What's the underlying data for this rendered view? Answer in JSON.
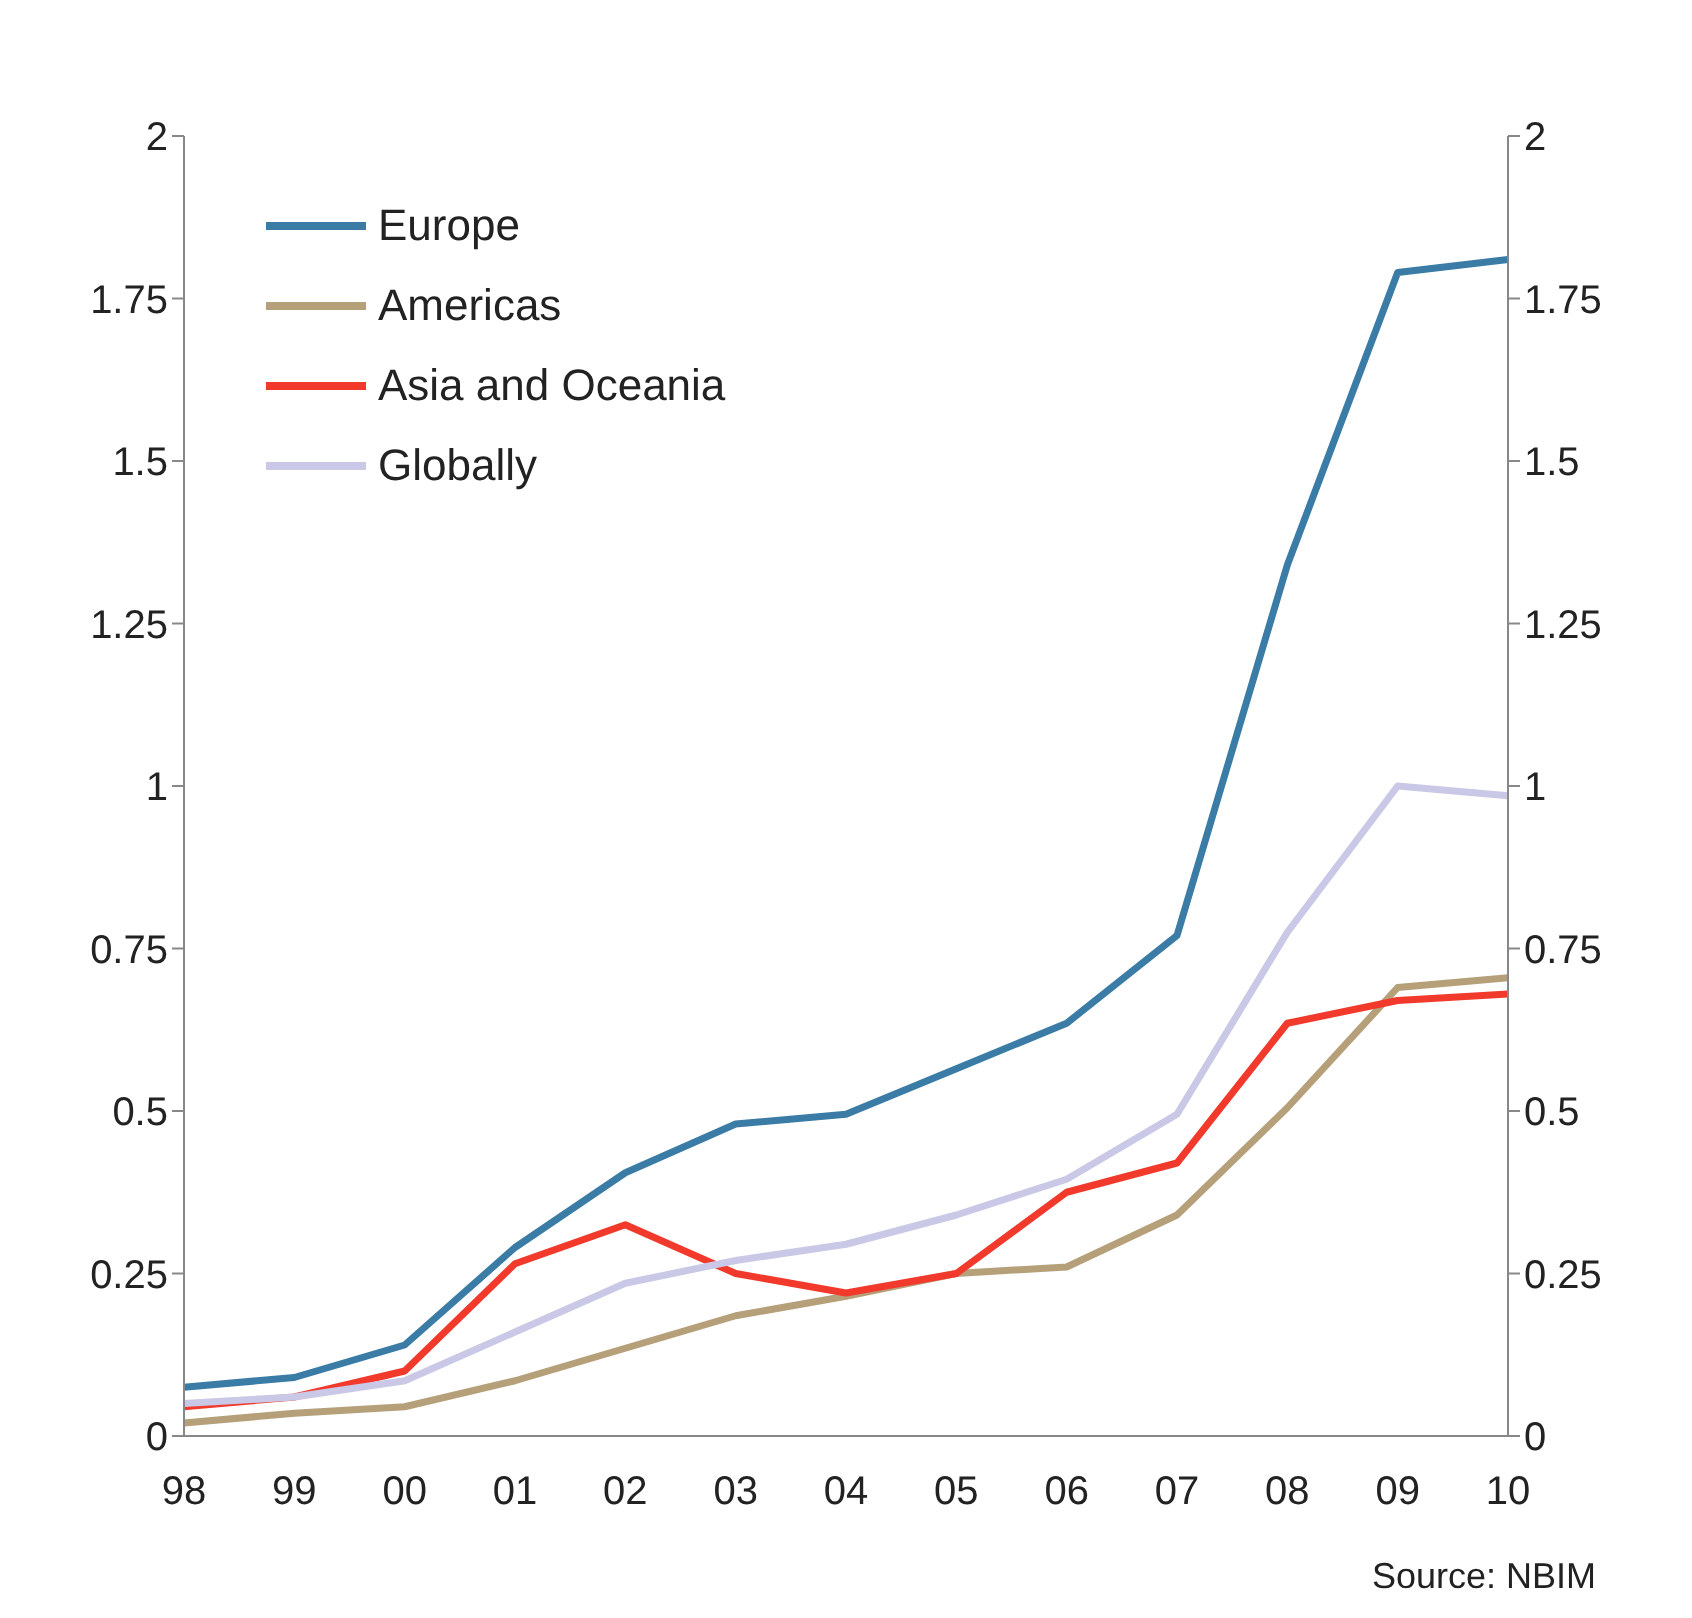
{
  "chart_data": {
    "type": "line",
    "categories": [
      "98",
      "99",
      "00",
      "01",
      "02",
      "03",
      "04",
      "05",
      "06",
      "07",
      "08",
      "09",
      "10"
    ],
    "series": [
      {
        "name": "Europe",
        "color": "#3a7ca5",
        "values": [
          0.075,
          0.09,
          0.14,
          0.29,
          0.405,
          0.48,
          0.495,
          0.565,
          0.635,
          0.77,
          1.34,
          1.79,
          1.81
        ]
      },
      {
        "name": "Americas",
        "color": "#b5a07a",
        "values": [
          0.02,
          0.035,
          0.045,
          0.085,
          0.135,
          0.185,
          0.215,
          0.25,
          0.26,
          0.34,
          0.505,
          0.69,
          0.705
        ]
      },
      {
        "name": "Asia and Oceania",
        "color": "#f23a2c",
        "values": [
          0.045,
          0.06,
          0.1,
          0.265,
          0.325,
          0.25,
          0.22,
          0.25,
          0.375,
          0.42,
          0.635,
          0.67,
          0.68
        ]
      },
      {
        "name": "Globally",
        "color": "#c9c8e6",
        "values": [
          0.05,
          0.06,
          0.085,
          0.16,
          0.235,
          0.27,
          0.295,
          0.34,
          0.395,
          0.495,
          0.775,
          1.0,
          0.985
        ]
      }
    ],
    "ylim": [
      0,
      2
    ],
    "yticks": [
      0,
      0.25,
      0.5,
      0.75,
      1,
      1.25,
      1.5,
      1.75,
      2
    ],
    "y2lim": [
      0,
      2
    ],
    "y2ticks": [
      0,
      0.25,
      0.5,
      0.75,
      1,
      1.25,
      1.5,
      1.75,
      2
    ],
    "grid": false,
    "legend": "top left",
    "marker": "none",
    "line_style": "solid",
    "annotations": [
      "Source: NBIM"
    ]
  }
}
